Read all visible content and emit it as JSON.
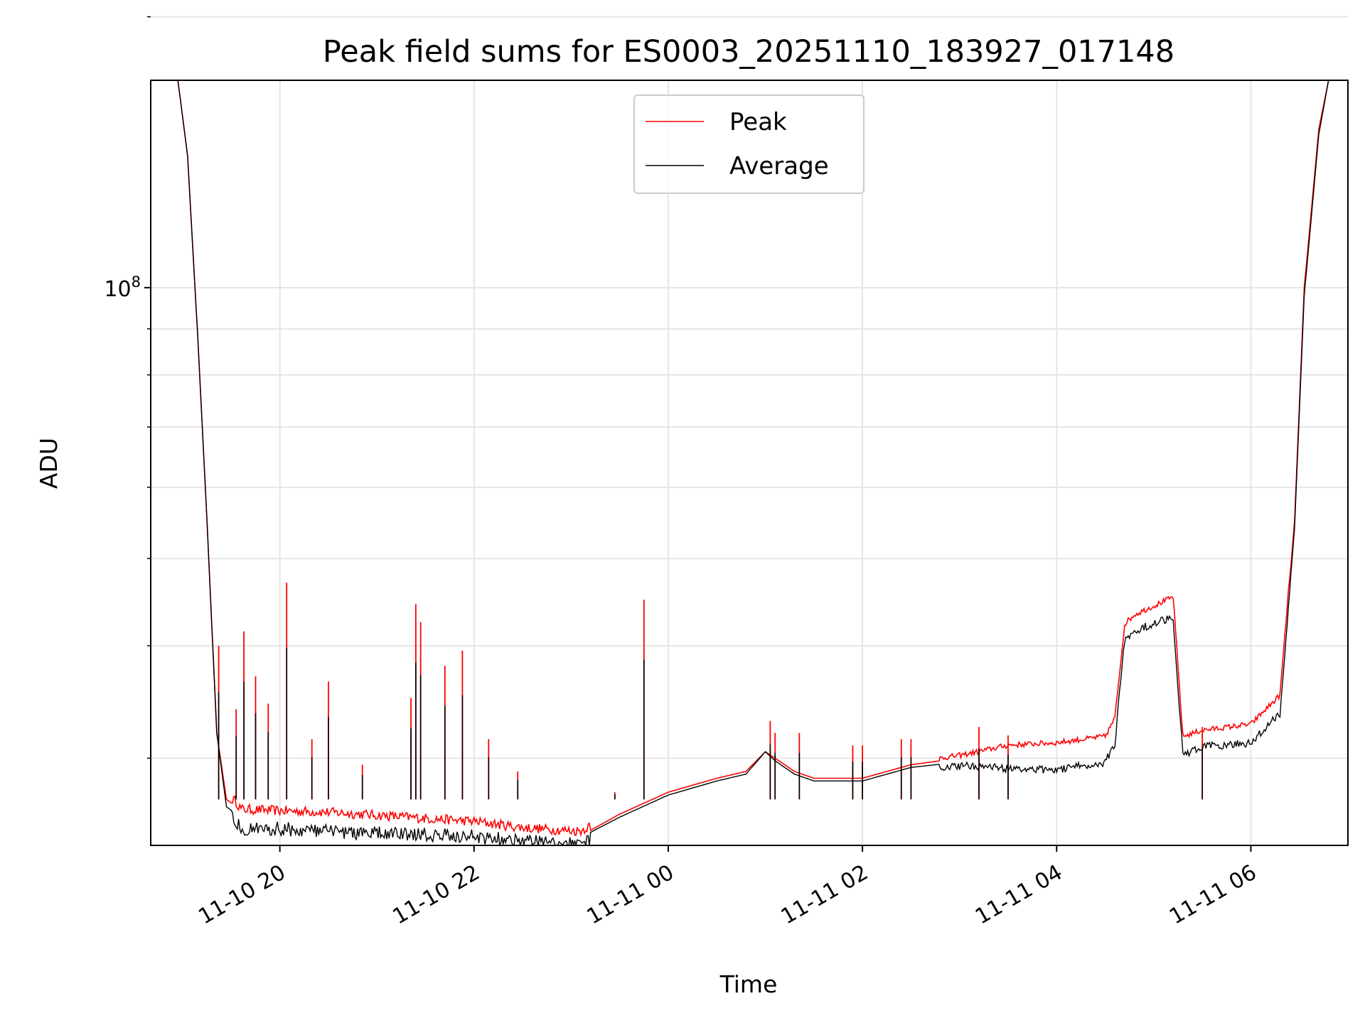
{
  "chart_data": {
    "type": "line",
    "title": "Peak field sums for ES0003_20251110_183927_017148",
    "xlabel": "Time",
    "ylabel": "ADU",
    "yscale": "log",
    "ylim": [
      24000000,
      170000000
    ],
    "xlim_hours": [
      -1.33,
      11.0
    ],
    "grid": true,
    "legend_position": "upper center",
    "x_ticks": [
      {
        "hours": 0,
        "label": "11-10 20"
      },
      {
        "hours": 2,
        "label": "11-10 22"
      },
      {
        "hours": 4,
        "label": "11-11 00"
      },
      {
        "hours": 6,
        "label": "11-11 02"
      },
      {
        "hours": 8,
        "label": "11-11 04"
      },
      {
        "hours": 10,
        "label": "11-11 06"
      }
    ],
    "y_major_ticks": [
      {
        "value": 100000000,
        "base": "10",
        "exp": "8"
      }
    ],
    "y_minor_ticks": [
      30000000,
      40000000,
      50000000,
      60000000,
      70000000,
      80000000,
      90000000,
      200000000
    ],
    "series": [
      {
        "name": "Peak",
        "color": "#ff0000",
        "x_hours": [
          -1.15,
          -1.05,
          -0.95,
          -0.85,
          -0.75,
          -0.65,
          -0.55,
          -0.45,
          -0.4,
          0,
          0.5,
          1,
          1.5,
          2,
          2.5,
          3.0,
          3.1,
          3.5,
          4.0,
          4.5,
          4.8,
          5.0,
          5.1,
          5.3,
          5.5,
          6.0,
          6.5,
          7.0,
          7.2,
          7.5,
          8.0,
          8.5,
          8.6,
          8.7,
          8.8,
          9.2,
          9.3,
          9.5,
          10.0,
          10.3,
          10.45,
          10.55,
          10.7,
          10.8,
          11.0
        ],
        "values": [
          170000000,
          170000000,
          140000000,
          90000000,
          55000000,
          32000000,
          27000000,
          26500000,
          26000000,
          25900000,
          25800000,
          25600000,
          25400000,
          25200000,
          24800000,
          24600000,
          24600000,
          26000000,
          27500000,
          28500000,
          29000000,
          30500000,
          30000000,
          29000000,
          28500000,
          28500000,
          29500000,
          30000000,
          30300000,
          30800000,
          31000000,
          31500000,
          33000000,
          42000000,
          43000000,
          45000000,
          31500000,
          32000000,
          32500000,
          35000000,
          55000000,
          100000000,
          150000000,
          170000000,
          170000000
        ]
      },
      {
        "name": "Average",
        "color": "#000000",
        "x_hours": [
          -1.15,
          -1.05,
          -0.95,
          -0.85,
          -0.75,
          -0.65,
          -0.55,
          -0.45,
          -0.4,
          0,
          0.5,
          1,
          1.5,
          2,
          2.5,
          3.0,
          3.1,
          3.5,
          4.0,
          4.5,
          4.8,
          5.0,
          5.1,
          5.3,
          5.5,
          6.0,
          6.5,
          7.0,
          7.2,
          7.5,
          8.0,
          8.5,
          8.6,
          8.7,
          8.8,
          9.2,
          9.3,
          9.5,
          10.0,
          10.3,
          10.45,
          10.55,
          10.7,
          10.8,
          11.0
        ],
        "values": [
          170000000,
          170000000,
          140000000,
          90000000,
          55000000,
          32000000,
          26500000,
          26000000,
          25500000,
          25500000,
          25300000,
          25200000,
          25100000,
          25000000,
          24700000,
          24500000,
          24500000,
          25800000,
          27300000,
          28300000,
          28800000,
          30500000,
          29800000,
          28800000,
          28300000,
          28300000,
          29300000,
          29700000,
          29700000,
          29500000,
          29400000,
          30000000,
          31500000,
          41000000,
          42000000,
          43500000,
          30500000,
          31200000,
          31500000,
          34000000,
          54000000,
          98000000,
          148000000,
          170000000,
          170000000
        ]
      }
    ],
    "peak_spikes": [
      {
        "hours": -0.63,
        "value": 40000000
      },
      {
        "hours": -0.45,
        "value": 34000000
      },
      {
        "hours": -0.37,
        "value": 41500000
      },
      {
        "hours": -0.25,
        "value": 37000000
      },
      {
        "hours": -0.12,
        "value": 34500000
      },
      {
        "hours": 0.07,
        "value": 47000000
      },
      {
        "hours": 0.33,
        "value": 31500000
      },
      {
        "hours": 0.5,
        "value": 36500000
      },
      {
        "hours": 0.85,
        "value": 29500000
      },
      {
        "hours": 1.35,
        "value": 35000000
      },
      {
        "hours": 1.4,
        "value": 44500000
      },
      {
        "hours": 1.45,
        "value": 42500000
      },
      {
        "hours": 1.7,
        "value": 38000000
      },
      {
        "hours": 1.88,
        "value": 39500000
      },
      {
        "hours": 2.15,
        "value": 31500000
      },
      {
        "hours": 2.45,
        "value": 29000000
      },
      {
        "hours": 3.45,
        "value": 27500000
      },
      {
        "hours": 3.75,
        "value": 45000000
      },
      {
        "hours": 5.05,
        "value": 33000000
      },
      {
        "hours": 5.1,
        "value": 32000000
      },
      {
        "hours": 5.35,
        "value": 32000000
      },
      {
        "hours": 5.9,
        "value": 31000000
      },
      {
        "hours": 6.0,
        "value": 31000000
      },
      {
        "hours": 6.4,
        "value": 31500000
      },
      {
        "hours": 6.5,
        "value": 31500000
      },
      {
        "hours": 7.2,
        "value": 32500000
      },
      {
        "hours": 7.5,
        "value": 31800000
      },
      {
        "hours": 9.5,
        "value": 32500000
      }
    ]
  }
}
